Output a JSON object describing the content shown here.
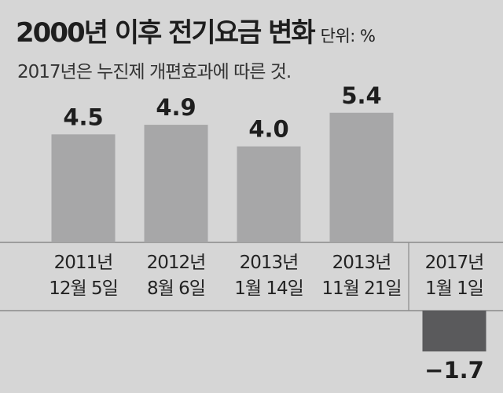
{
  "chart_data": {
    "type": "bar",
    "title": "2000년 이후 전기요금 변화",
    "unit": "단위: %",
    "subtitle": "2017년은 누진제 개편효과에 따른 것.",
    "categories": [
      [
        "2011년",
        "12월 5일"
      ],
      [
        "2012년",
        "8월 6일"
      ],
      [
        "2013년",
        "1월 14일"
      ],
      [
        "2013년",
        "11월 21일"
      ],
      [
        "2017년",
        "1월 1일"
      ]
    ],
    "values": [
      4.5,
      4.9,
      4.0,
      5.4,
      -1.7
    ],
    "value_labels": [
      "4.5",
      "4.9",
      "4.0",
      "5.4",
      "−1.7"
    ],
    "colors": {
      "positive": "#a7a7a8",
      "negative": "#5a5a5c",
      "background": "#d6d6d6"
    }
  }
}
